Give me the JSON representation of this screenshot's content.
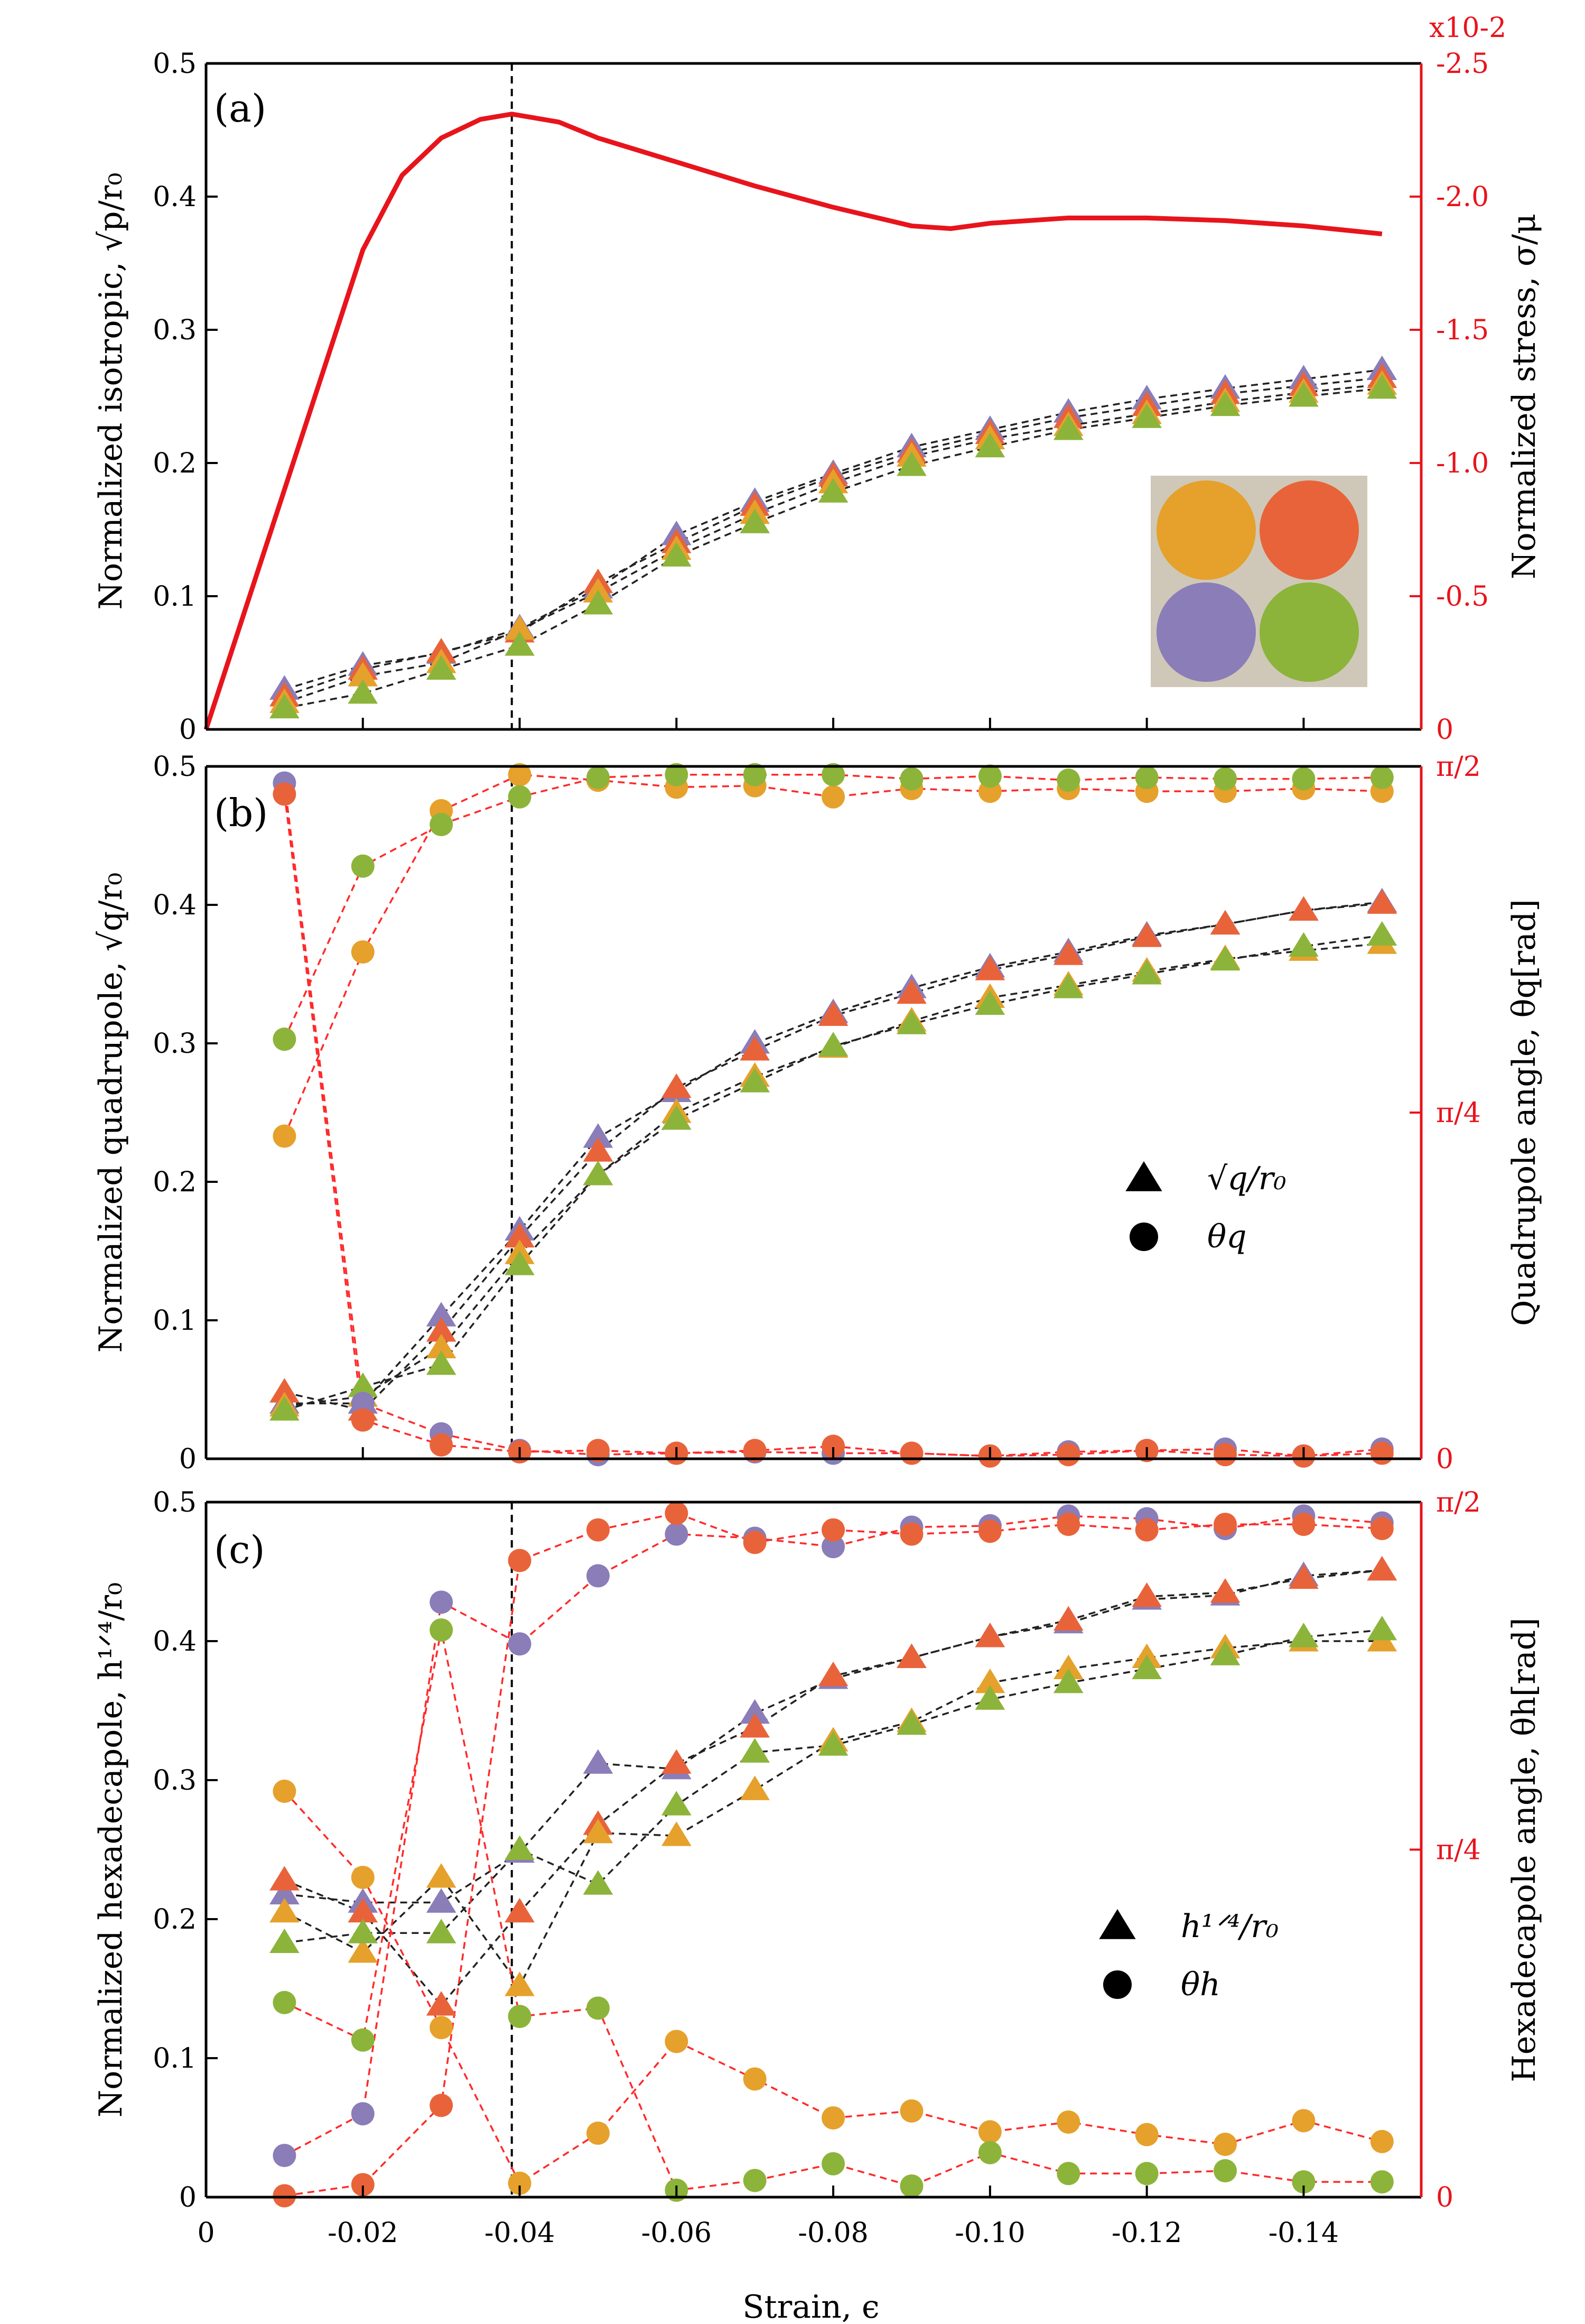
{
  "colors": {
    "orange": "#E5A12B",
    "red": "#E9633A",
    "purple": "#8A7DB8",
    "green": "#8CB43A",
    "axis_red": "#e8141c",
    "inset_bg": "#cfc8b8"
  },
  "chart_data": [
    {
      "panel": "(a)",
      "type": "line",
      "ylabel": "Normalized isotropic, √p/r₀",
      "y2label": "Normalized stress, σ/μ",
      "exponent_label": "x10-2",
      "xlim": [
        0,
        -0.155
      ],
      "ylim": [
        0,
        0.5
      ],
      "y2lim": [
        0,
        -2.5
      ],
      "yticks": [
        "0",
        "0.1",
        "0.2",
        "0.3",
        "0.4",
        "0.5"
      ],
      "y2ticks": [
        "0",
        "-0.5",
        "-1.0",
        "-1.5",
        "-2.0",
        "-2.5"
      ],
      "vline_x": -0.039,
      "stress_curve": {
        "x": [
          0,
          -0.005,
          -0.01,
          -0.015,
          -0.02,
          -0.025,
          -0.03,
          -0.035,
          -0.039,
          -0.045,
          -0.05,
          -0.06,
          -0.07,
          -0.08,
          -0.09,
          -0.095,
          -0.1,
          -0.11,
          -0.12,
          -0.13,
          -0.14,
          -0.15
        ],
        "y": [
          0,
          -0.45,
          -0.9,
          -1.35,
          -1.8,
          -2.08,
          -2.22,
          -2.29,
          -2.31,
          -2.28,
          -2.22,
          -2.13,
          -2.04,
          -1.96,
          -1.89,
          -1.88,
          -1.9,
          -1.92,
          -1.92,
          -1.91,
          -1.89,
          -1.86
        ]
      },
      "series": [
        {
          "name": "purple",
          "marker": "triangle",
          "x": [
            -0.01,
            -0.02,
            -0.03,
            -0.04,
            -0.05,
            -0.06,
            -0.07,
            -0.08,
            -0.09,
            -0.1,
            -0.11,
            -0.12,
            -0.13,
            -0.14,
            -0.15
          ],
          "values": [
            0.03,
            0.048,
            0.057,
            0.076,
            0.106,
            0.146,
            0.171,
            0.192,
            0.212,
            0.225,
            0.238,
            0.248,
            0.256,
            0.263,
            0.27
          ]
        },
        {
          "name": "red",
          "marker": "triangle",
          "x": [
            -0.01,
            -0.02,
            -0.03,
            -0.04,
            -0.05,
            -0.06,
            -0.07,
            -0.08,
            -0.09,
            -0.1,
            -0.11,
            -0.12,
            -0.13,
            -0.14,
            -0.15
          ],
          "values": [
            0.025,
            0.045,
            0.058,
            0.073,
            0.11,
            0.14,
            0.168,
            0.19,
            0.208,
            0.222,
            0.234,
            0.243,
            0.252,
            0.258,
            0.264
          ]
        },
        {
          "name": "orange",
          "marker": "triangle",
          "x": [
            -0.01,
            -0.02,
            -0.03,
            -0.04,
            -0.05,
            -0.06,
            -0.07,
            -0.08,
            -0.09,
            -0.1,
            -0.11,
            -0.12,
            -0.13,
            -0.14,
            -0.15
          ],
          "values": [
            0.02,
            0.04,
            0.05,
            0.075,
            0.103,
            0.135,
            0.162,
            0.185,
            0.205,
            0.218,
            0.228,
            0.237,
            0.246,
            0.253,
            0.259
          ]
        },
        {
          "name": "green",
          "marker": "triangle",
          "x": [
            -0.01,
            -0.02,
            -0.03,
            -0.04,
            -0.05,
            -0.06,
            -0.07,
            -0.08,
            -0.09,
            -0.1,
            -0.11,
            -0.12,
            -0.13,
            -0.14,
            -0.15
          ],
          "values": [
            0.016,
            0.027,
            0.045,
            0.063,
            0.094,
            0.13,
            0.155,
            0.178,
            0.198,
            0.212,
            0.225,
            0.234,
            0.243,
            0.25,
            0.256
          ]
        }
      ]
    },
    {
      "panel": "(b)",
      "type": "scatter",
      "ylabel": "Normalized quadrupole, √q/r₀",
      "y2label": "Quadrupole angle, θq[rad]",
      "ylim": [
        0,
        0.5
      ],
      "yticks": [
        "0",
        "0.1",
        "0.2",
        "0.3",
        "0.4",
        "0.5"
      ],
      "y2ticks": [
        "0",
        "π/4",
        "π/2"
      ],
      "legend": [
        "√q/r₀",
        "θq"
      ],
      "vline_x": -0.039,
      "series": [
        {
          "name": "purple",
          "marker": "triangle",
          "x": [
            -0.01,
            -0.02,
            -0.03,
            -0.04,
            -0.05,
            -0.06,
            -0.07,
            -0.08,
            -0.09,
            -0.1,
            -0.11,
            -0.12,
            -0.13,
            -0.14,
            -0.15
          ],
          "values": [
            0.04,
            0.04,
            0.103,
            0.165,
            0.232,
            0.265,
            0.3,
            0.322,
            0.34,
            0.355,
            0.366,
            0.378,
            0.386,
            0.396,
            0.402
          ]
        },
        {
          "name": "red",
          "marker": "triangle",
          "x": [
            -0.01,
            -0.02,
            -0.03,
            -0.04,
            -0.05,
            -0.06,
            -0.07,
            -0.08,
            -0.09,
            -0.1,
            -0.11,
            -0.12,
            -0.13,
            -0.14,
            -0.15
          ],
          "values": [
            0.048,
            0.035,
            0.092,
            0.16,
            0.222,
            0.268,
            0.295,
            0.32,
            0.336,
            0.353,
            0.364,
            0.377,
            0.386,
            0.396,
            0.401
          ]
        },
        {
          "name": "orange",
          "marker": "triangle",
          "x": [
            -0.01,
            -0.02,
            -0.03,
            -0.04,
            -0.05,
            -0.06,
            -0.07,
            -0.08,
            -0.09,
            -0.1,
            -0.11,
            -0.12,
            -0.13,
            -0.14,
            -0.15
          ],
          "values": [
            0.038,
            0.045,
            0.08,
            0.148,
            0.205,
            0.25,
            0.276,
            0.297,
            0.316,
            0.333,
            0.342,
            0.352,
            0.361,
            0.367,
            0.372
          ]
        },
        {
          "name": "green",
          "marker": "triangle",
          "x": [
            -0.01,
            -0.02,
            -0.03,
            -0.04,
            -0.05,
            -0.06,
            -0.07,
            -0.08,
            -0.09,
            -0.1,
            -0.11,
            -0.12,
            -0.13,
            -0.14,
            -0.15
          ],
          "values": [
            0.035,
            0.052,
            0.068,
            0.14,
            0.205,
            0.245,
            0.272,
            0.298,
            0.314,
            0.328,
            0.34,
            0.35,
            0.36,
            0.37,
            0.378
          ]
        },
        {
          "name": "purple",
          "marker": "circle",
          "axis": "right",
          "x": [
            -0.01,
            -0.02,
            -0.03,
            -0.04,
            -0.05,
            -0.06,
            -0.07,
            -0.08,
            -0.09,
            -0.1,
            -0.11,
            -0.12,
            -0.13,
            -0.14,
            -0.15
          ],
          "values": [
            0.488,
            0.04,
            0.018,
            0.006,
            0.003,
            0.004,
            0.005,
            0.004,
            0.004,
            0.002,
            0.005,
            0.006,
            0.007,
            0.002,
            0.007
          ]
        },
        {
          "name": "red",
          "marker": "circle",
          "axis": "right",
          "x": [
            -0.01,
            -0.02,
            -0.03,
            -0.04,
            -0.05,
            -0.06,
            -0.07,
            -0.08,
            -0.09,
            -0.1,
            -0.11,
            -0.12,
            -0.13,
            -0.14,
            -0.15
          ],
          "values": [
            0.48,
            0.028,
            0.01,
            0.005,
            0.006,
            0.004,
            0.006,
            0.009,
            0.004,
            0.002,
            0.003,
            0.006,
            0.003,
            0.002,
            0.004
          ]
        },
        {
          "name": "orange",
          "marker": "circle",
          "axis": "right",
          "x": [
            -0.01,
            -0.02,
            -0.03,
            -0.04,
            -0.05,
            -0.06,
            -0.07,
            -0.08,
            -0.09,
            -0.1,
            -0.11,
            -0.12,
            -0.13,
            -0.14,
            -0.15
          ],
          "values": [
            0.233,
            0.366,
            0.468,
            0.494,
            0.49,
            0.485,
            0.486,
            0.478,
            0.484,
            0.482,
            0.484,
            0.482,
            0.482,
            0.484,
            0.482
          ]
        },
        {
          "name": "green",
          "marker": "circle",
          "axis": "right",
          "x": [
            -0.01,
            -0.02,
            -0.03,
            -0.04,
            -0.05,
            -0.06,
            -0.07,
            -0.08,
            -0.09,
            -0.1,
            -0.11,
            -0.12,
            -0.13,
            -0.14,
            -0.15
          ],
          "values": [
            0.303,
            0.428,
            0.458,
            0.478,
            0.492,
            0.494,
            0.494,
            0.494,
            0.491,
            0.493,
            0.49,
            0.492,
            0.491,
            0.491,
            0.492
          ]
        }
      ]
    },
    {
      "panel": "(c)",
      "type": "scatter",
      "ylabel": "Normalized hexadecapole, h¹ᐟ⁴/r₀",
      "y2label": "Hexadecapole angle, θh[rad]",
      "xlabel": "Strain, ϵ",
      "ylim": [
        0,
        0.5
      ],
      "yticks": [
        "0",
        "0.1",
        "0.2",
        "0.3",
        "0.4",
        "0.5"
      ],
      "y2ticks": [
        "0",
        "π/4",
        "π/2"
      ],
      "xticks": [
        "0",
        "-0.02",
        "-0.04",
        "-0.06",
        "-0.08",
        "-0.10",
        "-0.12",
        "-0.14"
      ],
      "legend": [
        "h¹ᐟ⁴/r₀",
        "θh"
      ],
      "vline_x": -0.039,
      "series": [
        {
          "name": "purple",
          "marker": "triangle",
          "x": [
            -0.01,
            -0.02,
            -0.03,
            -0.04,
            -0.05,
            -0.06,
            -0.07,
            -0.08,
            -0.09,
            -0.1,
            -0.11,
            -0.12,
            -0.13,
            -0.14,
            -0.15
          ],
          "values": [
            0.218,
            0.212,
            0.212,
            0.248,
            0.312,
            0.308,
            0.348,
            0.373,
            0.388,
            0.403,
            0.413,
            0.43,
            0.433,
            0.447,
            0.451
          ]
        },
        {
          "name": "red",
          "marker": "triangle",
          "x": [
            -0.01,
            -0.02,
            -0.03,
            -0.04,
            -0.05,
            -0.06,
            -0.07,
            -0.08,
            -0.09,
            -0.1,
            -0.11,
            -0.12,
            -0.13,
            -0.14,
            -0.15
          ],
          "values": [
            0.228,
            0.205,
            0.138,
            0.205,
            0.268,
            0.312,
            0.338,
            0.375,
            0.388,
            0.403,
            0.415,
            0.432,
            0.435,
            0.445,
            0.451
          ]
        },
        {
          "name": "orange",
          "marker": "triangle",
          "x": [
            -0.01,
            -0.02,
            -0.03,
            -0.04,
            -0.05,
            -0.06,
            -0.07,
            -0.08,
            -0.09,
            -0.1,
            -0.11,
            -0.12,
            -0.13,
            -0.14,
            -0.15
          ],
          "values": [
            0.205,
            0.176,
            0.23,
            0.152,
            0.262,
            0.26,
            0.293,
            0.328,
            0.342,
            0.37,
            0.38,
            0.388,
            0.395,
            0.4,
            0.4
          ]
        },
        {
          "name": "green",
          "marker": "triangle",
          "x": [
            -0.01,
            -0.02,
            -0.03,
            -0.04,
            -0.05,
            -0.06,
            -0.07,
            -0.08,
            -0.09,
            -0.1,
            -0.11,
            -0.12,
            -0.13,
            -0.14,
            -0.15
          ],
          "values": [
            0.183,
            0.19,
            0.19,
            0.25,
            0.225,
            0.282,
            0.32,
            0.325,
            0.34,
            0.358,
            0.37,
            0.38,
            0.39,
            0.403,
            0.408
          ]
        },
        {
          "name": "purple",
          "marker": "circle",
          "axis": "right",
          "x": [
            -0.01,
            -0.02,
            -0.03,
            -0.04,
            -0.05,
            -0.06,
            -0.07,
            -0.08,
            -0.09,
            -0.1,
            -0.11,
            -0.12,
            -0.13,
            -0.14,
            -0.15
          ],
          "values": [
            0.03,
            0.06,
            0.428,
            0.398,
            0.447,
            0.477,
            0.474,
            0.468,
            0.482,
            0.483,
            0.49,
            0.488,
            0.481,
            0.49,
            0.485
          ]
        },
        {
          "name": "red",
          "marker": "circle",
          "axis": "right",
          "x": [
            -0.01,
            -0.02,
            -0.03,
            -0.04,
            -0.05,
            -0.06,
            -0.07,
            -0.08,
            -0.09,
            -0.1,
            -0.11,
            -0.12,
            -0.13,
            -0.14,
            -0.15
          ],
          "values": [
            0.001,
            0.009,
            0.066,
            0.458,
            0.48,
            0.492,
            0.471,
            0.48,
            0.477,
            0.479,
            0.484,
            0.48,
            0.484,
            0.484,
            0.481
          ]
        },
        {
          "name": "orange",
          "marker": "circle",
          "axis": "right",
          "x": [
            -0.01,
            -0.02,
            -0.03,
            -0.04,
            -0.05,
            -0.06,
            -0.07,
            -0.08,
            -0.09,
            -0.1,
            -0.11,
            -0.12,
            -0.13,
            -0.14,
            -0.15
          ],
          "values": [
            0.292,
            0.23,
            0.122,
            0.01,
            0.046,
            0.112,
            0.085,
            0.057,
            0.062,
            0.047,
            0.054,
            0.045,
            0.038,
            0.055,
            0.04
          ]
        },
        {
          "name": "green",
          "marker": "circle",
          "axis": "right",
          "x": [
            -0.01,
            -0.02,
            -0.03,
            -0.04,
            -0.05,
            -0.06,
            -0.07,
            -0.08,
            -0.09,
            -0.1,
            -0.11,
            -0.12,
            -0.13,
            -0.14,
            -0.15
          ],
          "values": [
            0.14,
            0.113,
            0.408,
            0.13,
            0.136,
            0.005,
            0.012,
            0.024,
            0.008,
            0.032,
            0.017,
            0.017,
            0.019,
            0.011,
            0.011
          ]
        }
      ]
    }
  ]
}
